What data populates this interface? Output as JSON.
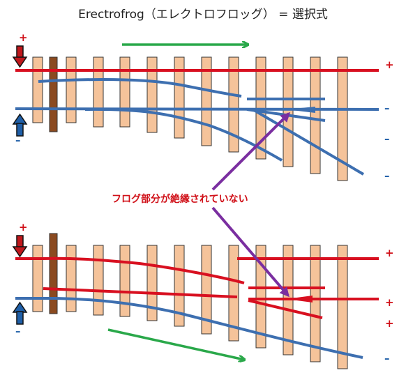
{
  "title": "Erectrofrog（エレクトロフロッグ） =  選択式",
  "annotation": "フログ部分が絶縁されていない",
  "polarity": {
    "plus": "+",
    "minus": "–"
  },
  "colors": {
    "red_rail": "#d81020",
    "blue_rail": "#3d6fb0",
    "tie": "#f5c39a",
    "tie_dark": "#8b4a20",
    "tie_border": "#333333",
    "arrow_green": "#2aa84a",
    "arrow_purple": "#7a2ea0",
    "arrow_red": "#c0181c",
    "arrow_blue": "#1f5fa8"
  },
  "icons": {
    "feed_down_arrow": "down-arrow-icon",
    "feed_up_arrow": "up-arrow-icon",
    "direction_arrow": "direction-arrow-icon",
    "pointer_arrow": "pointer-arrow-icon"
  }
}
